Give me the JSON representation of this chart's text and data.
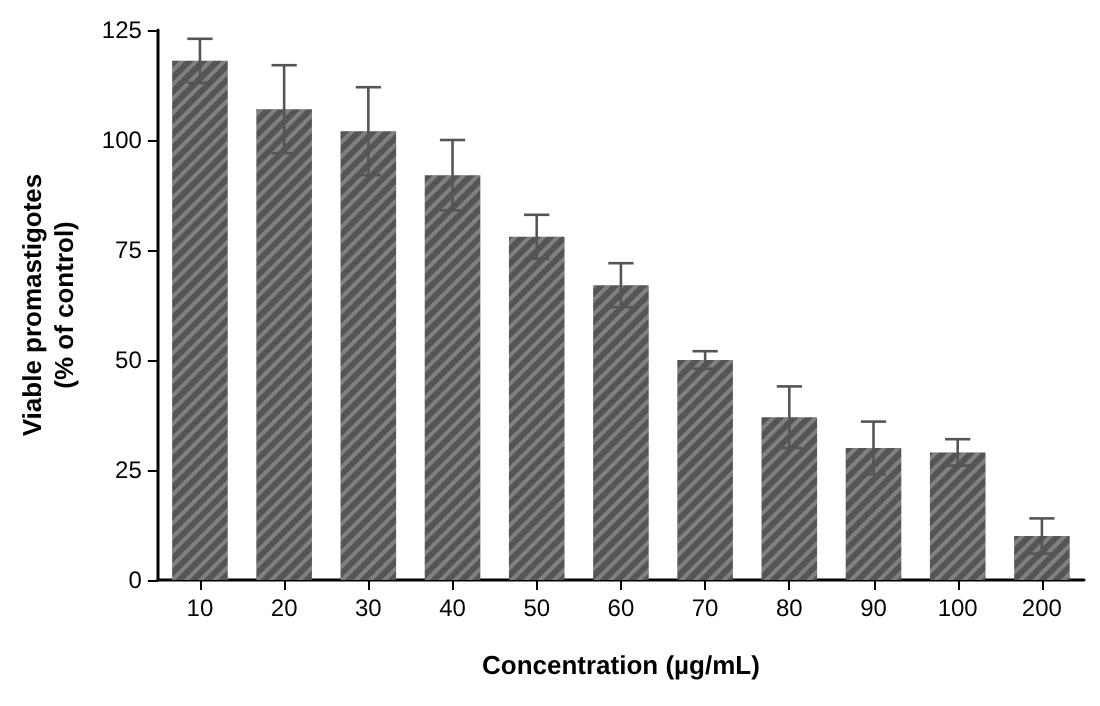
{
  "chart_data": {
    "type": "bar",
    "xlabel": "Concentration (µg/mL)",
    "ylabel": "Viable promastigotes\n(% of control)",
    "categories": [
      "10",
      "20",
      "30",
      "40",
      "50",
      "60",
      "70",
      "80",
      "90",
      "100",
      "200"
    ],
    "values": [
      118,
      107,
      102,
      92,
      78,
      67,
      50,
      37,
      30,
      29,
      10
    ],
    "errors": [
      5,
      10,
      10,
      8,
      5,
      5,
      2,
      7,
      6,
      3,
      4
    ],
    "color": "#555555",
    "ylim": [
      0,
      125
    ],
    "yticks": [
      0,
      25,
      50,
      75,
      100,
      125
    ],
    "grid": false
  }
}
